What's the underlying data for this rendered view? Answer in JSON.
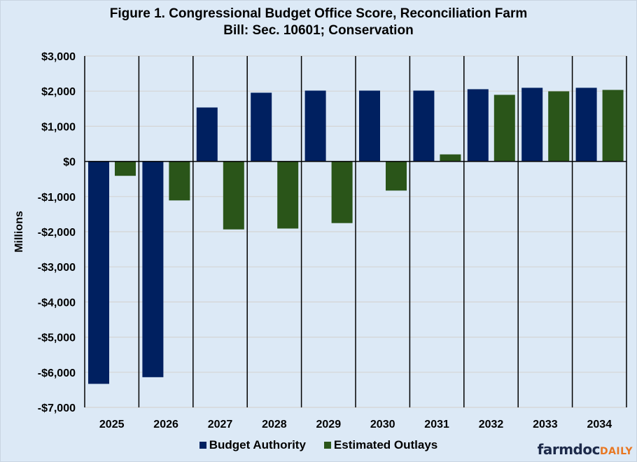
{
  "chart_data": {
    "type": "bar",
    "title_line1": "Figure  1. Congressional  Budget  Office  Score,  Reconciliation  Farm",
    "title_line2": "Bill:  Sec. 10601;  Conservation",
    "xlabel": "",
    "ylabel": "Millions",
    "ylim": [
      -7000,
      3000
    ],
    "yticks": [
      3000,
      2000,
      1000,
      0,
      -1000,
      -2000,
      -3000,
      -4000,
      -5000,
      -6000,
      -7000
    ],
    "ytick_labels": [
      "$3,000",
      "$2,000",
      "$1,000",
      "$0",
      "-$1,000",
      "-$2,000",
      "-$3,000",
      "-$4,000",
      "-$5,000",
      "-$6,000",
      "-$7,000"
    ],
    "grid": true,
    "legend_position": "bottom",
    "categories": [
      "2025",
      "2026",
      "2027",
      "2028",
      "2029",
      "2030",
      "2031",
      "2032",
      "2033",
      "2034"
    ],
    "series": [
      {
        "name": "Budget Authority",
        "color": "#002060",
        "values": [
          -6330,
          -6140,
          1535,
          1955,
          2015,
          2015,
          2015,
          2055,
          2095,
          2095
        ]
      },
      {
        "name": "Estimated Outlays",
        "color": "#2a5519",
        "values": [
          -410,
          -1110,
          -1935,
          -1910,
          -1755,
          -830,
          200,
          1895,
          1995,
          2035
        ]
      }
    ]
  },
  "branding": {
    "logo_main": "farmdoc",
    "logo_suffix": "DAILY"
  }
}
